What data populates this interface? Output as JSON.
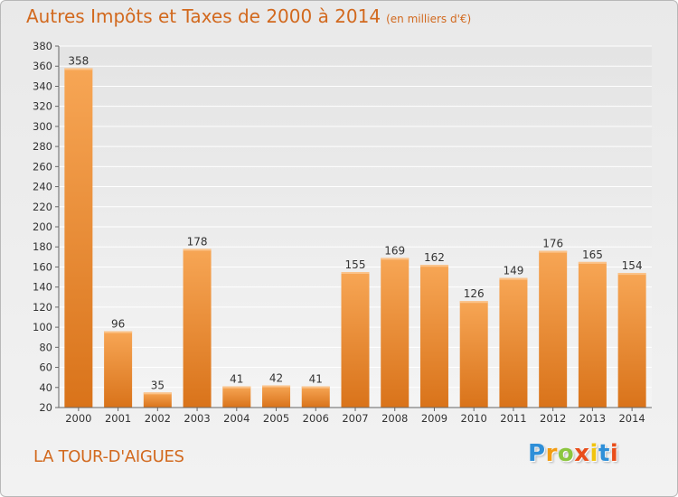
{
  "title": "Autres Impôts et Taxes de 2000 à 2014",
  "unit_label": "(en milliers d'€)",
  "location": "LA TOUR-D'AIGUES",
  "logo": {
    "letters": [
      "P",
      "r",
      "o",
      "x",
      "i",
      "t",
      "i"
    ],
    "colors": [
      "#2f8fd8",
      "#f39c12",
      "#8cc63f",
      "#e94e1b",
      "#f1c40f",
      "#2f8fd8",
      "#e94e1b"
    ]
  },
  "colors": {
    "title": "#d2691e",
    "bar_top": "#f7a655",
    "bar_bottom": "#d9731a"
  },
  "chart_data": {
    "type": "bar",
    "title": "Autres Impôts et Taxes de 2000 à 2014",
    "subtitle": "(en milliers d'€)",
    "categories": [
      "2000",
      "2001",
      "2002",
      "2003",
      "2004",
      "2005",
      "2006",
      "2007",
      "2008",
      "2009",
      "2010",
      "2011",
      "2012",
      "2013",
      "2014"
    ],
    "values": [
      358,
      96,
      35,
      178,
      41,
      42,
      41,
      155,
      169,
      162,
      126,
      149,
      176,
      165,
      154
    ],
    "ylim": [
      20,
      380
    ],
    "yticks": [
      20,
      40,
      60,
      80,
      100,
      120,
      140,
      160,
      180,
      200,
      220,
      240,
      260,
      280,
      300,
      320,
      340,
      360,
      380
    ],
    "grid": true,
    "xlabel": "",
    "ylabel": ""
  }
}
